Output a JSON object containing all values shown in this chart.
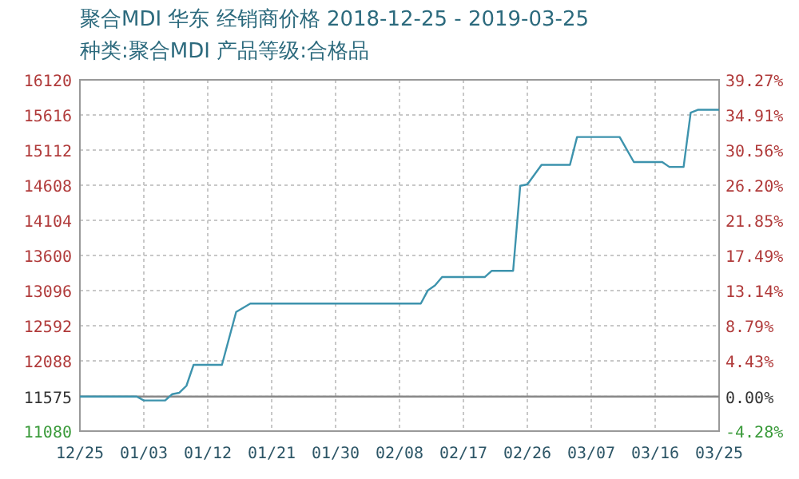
{
  "chart_data": {
    "type": "line",
    "title": "聚合MDI 华东 经销商价格 2018-12-25 - 2019-03-25",
    "subtitle": "种类:聚合MDI 产品等级:合格品",
    "x": [
      "2018-12-25",
      "2019-01-02",
      "2019-01-03",
      "2019-01-06",
      "2019-01-07",
      "2019-01-08",
      "2019-01-09",
      "2019-01-10",
      "2019-01-14",
      "2019-01-16",
      "2019-01-18",
      "2019-02-11",
      "2019-02-12",
      "2019-02-13",
      "2019-02-14",
      "2019-02-20",
      "2019-02-21",
      "2019-02-24",
      "2019-02-25",
      "2019-02-26",
      "2019-02-28",
      "2019-03-04",
      "2019-03-05",
      "2019-03-11",
      "2019-03-13",
      "2019-03-17",
      "2019-03-18",
      "2019-03-20",
      "2019-03-21",
      "2019-03-22",
      "2019-03-25"
    ],
    "series": [
      {
        "color": "#3d93ad",
        "values": [
          11575,
          11575,
          11520,
          11520,
          11610,
          11630,
          11730,
          12030,
          12030,
          12790,
          12910,
          12910,
          13100,
          13170,
          13290,
          13290,
          13380,
          13380,
          14600,
          14620,
          14900,
          14900,
          15300,
          15300,
          14940,
          14940,
          14870,
          14870,
          15650,
          15690,
          15690
        ]
      }
    ],
    "xlim": [
      "2018-12-25",
      "2019-03-25"
    ],
    "xticks": [
      {
        "value": "2018-12-25",
        "label": "12/25"
      },
      {
        "value": "2019-01-03",
        "label": "01/03"
      },
      {
        "value": "2019-01-12",
        "label": "01/12"
      },
      {
        "value": "2019-01-21",
        "label": "01/21"
      },
      {
        "value": "2019-01-30",
        "label": "01/30"
      },
      {
        "value": "2019-02-08",
        "label": "02/08"
      },
      {
        "value": "2019-02-17",
        "label": "02/17"
      },
      {
        "value": "2019-02-26",
        "label": "02/26"
      },
      {
        "value": "2019-03-07",
        "label": "03/07"
      },
      {
        "value": "2019-03-16",
        "label": "03/16"
      },
      {
        "value": "2019-03-25",
        "label": "03/25"
      }
    ],
    "ylim": [
      11080,
      16120
    ],
    "yticks": [
      11080,
      11575,
      12088,
      12592,
      13096,
      13600,
      14104,
      14608,
      15112,
      15616,
      16120
    ],
    "y2lim": [
      -4.28,
      39.27
    ],
    "y2ticks": [
      {
        "value": -4.28,
        "label": "-4.28%"
      },
      {
        "value": 0,
        "label": "0.00%"
      },
      {
        "value": 4.43,
        "label": "4.43%"
      },
      {
        "value": 8.79,
        "label": "8.79%"
      },
      {
        "value": 13.14,
        "label": "13.14%"
      },
      {
        "value": 17.49,
        "label": "17.49%"
      },
      {
        "value": 21.85,
        "label": "21.85%"
      },
      {
        "value": 26.2,
        "label": "26.20%"
      },
      {
        "value": 30.56,
        "label": "30.56%"
      },
      {
        "value": 34.91,
        "label": "34.91%"
      },
      {
        "value": 39.27,
        "label": "39.27%"
      }
    ],
    "ref_lines": [
      {
        "axis": "y",
        "value": 11575,
        "color": "#888888"
      }
    ],
    "grid": true,
    "line_style": "solid",
    "marker": "none"
  }
}
